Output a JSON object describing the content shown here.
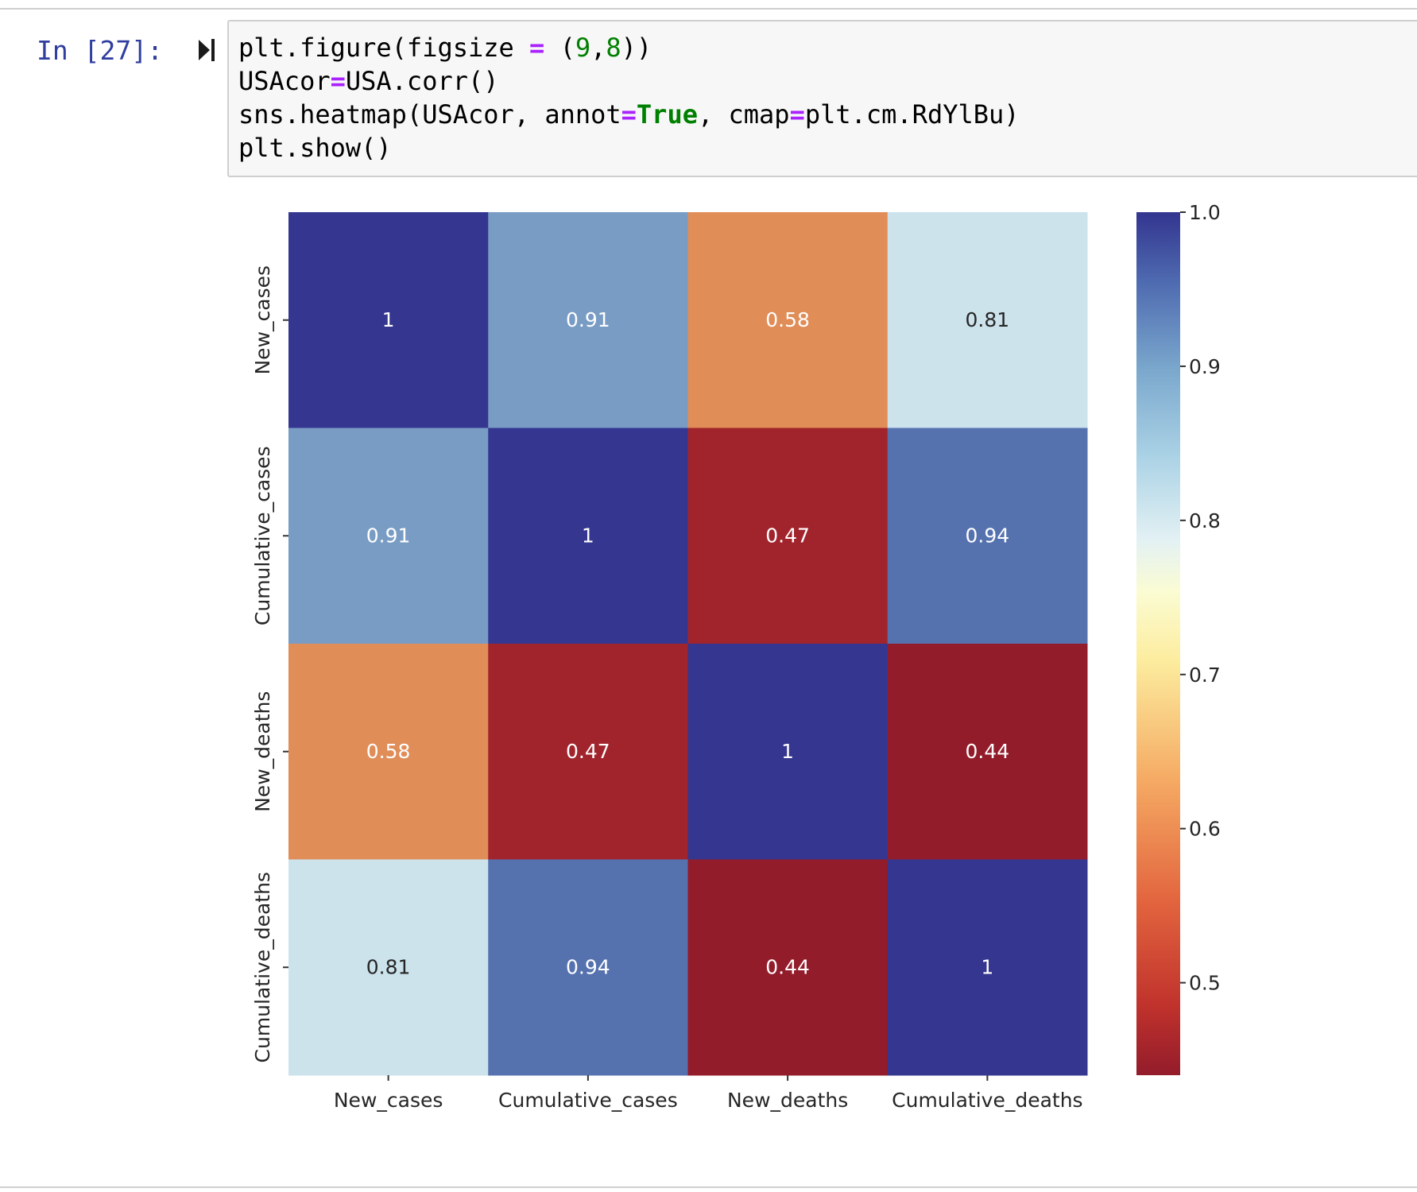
{
  "cell": {
    "prompt": "In [27]:",
    "run_icon": "run-cell-icon",
    "code_lines": [
      [
        {
          "t": "plt.figure(figsize ",
          "c": "plain"
        },
        {
          "t": "=",
          "c": "op"
        },
        {
          "t": " (",
          "c": "plain"
        },
        {
          "t": "9",
          "c": "num"
        },
        {
          "t": ",",
          "c": "plain"
        },
        {
          "t": "8",
          "c": "num"
        },
        {
          "t": "))",
          "c": "plain"
        }
      ],
      [
        {
          "t": "USAcor",
          "c": "plain"
        },
        {
          "t": "=",
          "c": "op"
        },
        {
          "t": "USA.corr()",
          "c": "plain"
        }
      ],
      [
        {
          "t": "sns.heatmap(USAcor, annot",
          "c": "plain"
        },
        {
          "t": "=",
          "c": "op"
        },
        {
          "t": "True",
          "c": "kw"
        },
        {
          "t": ", cmap",
          "c": "plain"
        },
        {
          "t": "=",
          "c": "op"
        },
        {
          "t": "plt.cm.RdYlBu)",
          "c": "plain"
        }
      ],
      [
        {
          "t": "plt.show()",
          "c": "plain"
        }
      ]
    ]
  },
  "colors": {
    "prompt": "#303f9f",
    "operator": "#aa22ff",
    "number": "#008000",
    "keyword": "#008000"
  },
  "chart_data": {
    "type": "heatmap",
    "title": "",
    "xlabel": "",
    "ylabel": "",
    "rows": [
      "New_cases",
      "Cumulative_cases",
      "New_deaths",
      "Cumulative_deaths"
    ],
    "columns": [
      "New_cases",
      "Cumulative_cases",
      "New_deaths",
      "Cumulative_deaths"
    ],
    "values": [
      [
        1.0,
        0.91,
        0.58,
        0.81
      ],
      [
        0.91,
        1.0,
        0.47,
        0.94
      ],
      [
        0.58,
        0.47,
        1.0,
        0.44
      ],
      [
        0.81,
        0.94,
        0.44,
        1.0
      ]
    ],
    "annotations": [
      [
        "1",
        "0.91",
        "0.58",
        "0.81"
      ],
      [
        "0.91",
        "1",
        "0.47",
        "0.94"
      ],
      [
        "0.58",
        "0.47",
        "1",
        "0.44"
      ],
      [
        "0.81",
        "0.94",
        "0.44",
        "1"
      ]
    ],
    "colormap": "RdYlBu",
    "colorbar": {
      "range": [
        0.44,
        1.0
      ],
      "ticks": [
        0.5,
        0.6,
        0.7,
        0.8,
        0.9,
        1.0
      ],
      "tick_labels": [
        "0.5",
        "0.6",
        "0.7",
        "0.8",
        "0.9",
        "1.0"
      ]
    },
    "grid": false
  }
}
